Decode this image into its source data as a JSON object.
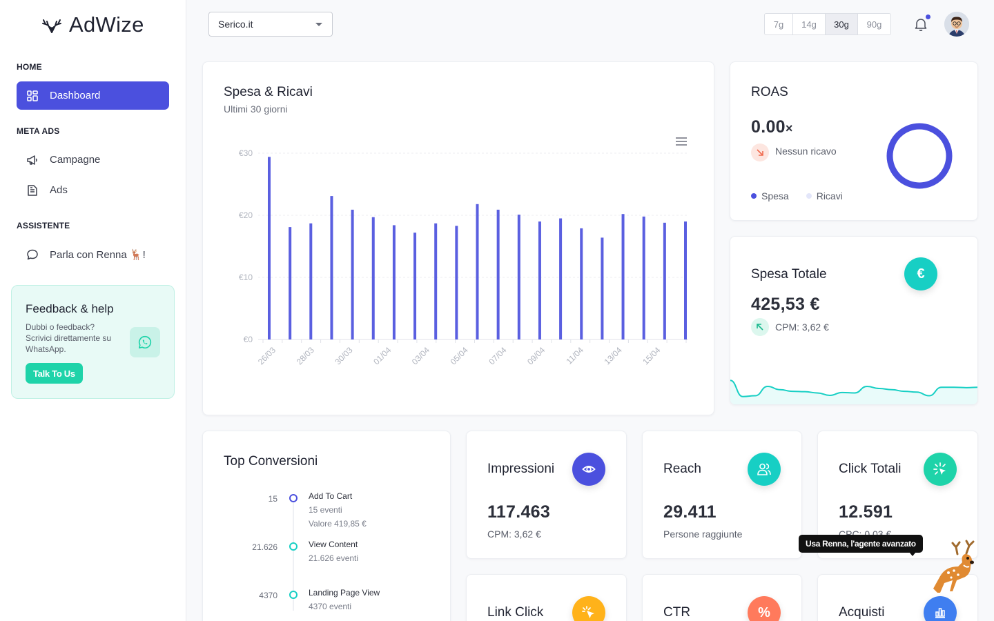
{
  "app": {
    "name": "AdWize"
  },
  "sidebar": {
    "sections": [
      {
        "label": "HOME"
      },
      {
        "label": "META ADS"
      },
      {
        "label": "ASSISTENTE"
      }
    ],
    "items": [
      {
        "label": "Dashboard",
        "icon": "grid-icon",
        "active": true
      },
      {
        "label": "Campagne",
        "icon": "megaphone-icon"
      },
      {
        "label": "Ads",
        "icon": "document-icon"
      },
      {
        "label": "Parla con Renna 🦌!",
        "icon": "chat-bubble-icon"
      }
    ],
    "feedback": {
      "title": "Feedback & help",
      "text": "Dubbi o feedback? Scrivici direttamente su WhatsApp.",
      "button": "Talk To Us"
    }
  },
  "header": {
    "account_select": "Serico.it",
    "ranges": [
      "7g",
      "14g",
      "30g",
      "90g"
    ],
    "active_range": "30g"
  },
  "spesa_ricavi": {
    "title": "Spesa & Ricavi",
    "subtitle": "Ultimi 30 giorni"
  },
  "chart_data": {
    "type": "bar",
    "title": "Spesa & Ricavi",
    "subtitle": "Ultimi 30 giorni",
    "y_ticks": [
      "€0",
      "€10",
      "€20",
      "€30"
    ],
    "ylim": [
      0,
      30
    ],
    "x_tick_labels": [
      "26/03",
      "28/03",
      "30/03",
      "01/04",
      "03/04",
      "05/04",
      "07/04",
      "09/04",
      "11/04",
      "13/04",
      "15/04"
    ],
    "values": [
      29.4,
      18.1,
      18.7,
      23.1,
      20.9,
      19.7,
      18.4,
      17.2,
      18.7,
      18.3,
      21.8,
      20.9,
      20.1,
      19.0,
      19.5,
      17.9,
      16.4,
      20.2,
      19.8,
      18.8,
      19.0
    ],
    "series": [
      {
        "name": "Spesa",
        "color": "#5a5fe0"
      }
    ],
    "grid": true
  },
  "roas": {
    "title": "ROAS",
    "value": "0.00",
    "suffix": "×",
    "note": "Nessun ricavo",
    "legend": [
      {
        "name": "Spesa",
        "color": "#4b50de"
      },
      {
        "name": "Ricavi",
        "color": "#e3e6fa"
      }
    ]
  },
  "spesa_totale": {
    "title": "Spesa Totale",
    "value": "425,53 €",
    "note": "CPM: 3,62 €",
    "icon": "euro-icon",
    "sparkline": [
      0.55,
      0.95,
      0.93,
      0.7,
      0.78,
      0.82,
      0.83,
      0.86,
      0.92,
      0.85,
      0.86,
      0.7,
      0.75,
      0.78,
      0.82,
      0.84,
      0.93,
      0.72,
      0.72,
      0.73,
      0.72
    ],
    "accent": "#17cfc4"
  },
  "top_conversioni": {
    "title": "Top Conversioni",
    "items": [
      {
        "value": "15",
        "name": "Add To Cart",
        "events": "15 eventi",
        "extra": "Valore 419,85 €",
        "color": "#4b50de"
      },
      {
        "value": "21.626",
        "name": "View Content",
        "events": "21.626 eventi",
        "extra": "",
        "color": "#17cfc4"
      },
      {
        "value": "4370",
        "name": "Landing Page View",
        "events": "4370 eventi",
        "extra": "",
        "color": "#17cfc4"
      }
    ]
  },
  "kpis": [
    {
      "title": "Impressioni",
      "value": "117.463",
      "note": "CPM: 3,62 €",
      "icon": "eye-icon",
      "color": "#4b50de"
    },
    {
      "title": "Reach",
      "value": "29.411",
      "note": "Persone raggiunte",
      "icon": "users-icon",
      "color": "#17cfc4"
    },
    {
      "title": "Click Totali",
      "value": "12.591",
      "note": "CPC: 0,03 €",
      "icon": "sparkle-click-icon",
      "color": "#1ed3a9"
    },
    {
      "title": "Link Click",
      "icon": "cursor-click-icon",
      "color": "#ffb21a"
    },
    {
      "title": "CTR",
      "icon": "percent-icon",
      "color": "#ff7a5c"
    },
    {
      "title": "Acquisti",
      "icon": "bar-chart-icon",
      "color": "#3f7ef0"
    }
  ],
  "assistant_tooltip": "Usa Renna, l'agente avanzato"
}
